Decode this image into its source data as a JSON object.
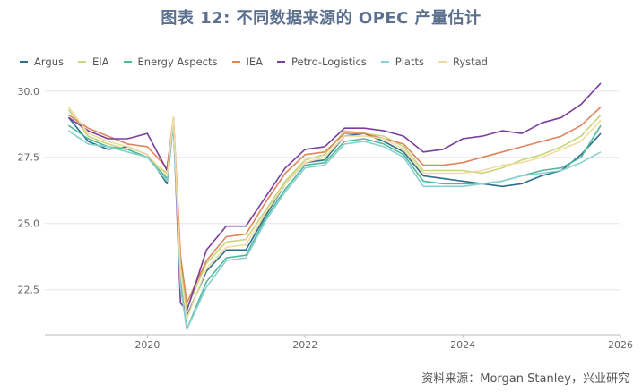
{
  "title": "图表 12: 不同数据来源的 OPEC 产量估计",
  "source": "资料来源：Morgan Stanley，兴业研究",
  "chart_data": {
    "type": "line",
    "xlabel": "",
    "ylabel": "",
    "xlim": [
      2018.7,
      2026.0
    ],
    "ylim": [
      20.8,
      30.6
    ],
    "xticks": [
      2020,
      2022,
      2024,
      2026
    ],
    "yticks": [
      22.5,
      25.0,
      27.5,
      30.0
    ],
    "ytick_labels": [
      "22.5",
      "25.0",
      "27.5",
      "30.0"
    ],
    "legend_position": "top-left",
    "grid": "horizontal",
    "x": [
      2019.0,
      2019.25,
      2019.5,
      2019.75,
      2020.0,
      2020.25,
      2020.33,
      2020.42,
      2020.5,
      2020.75,
      2021.0,
      2021.25,
      2021.5,
      2021.75,
      2022.0,
      2022.25,
      2022.5,
      2022.75,
      2023.0,
      2023.25,
      2023.5,
      2023.75,
      2024.0,
      2024.25,
      2024.5,
      2024.75,
      2025.0,
      2025.25,
      2025.5,
      2025.75
    ],
    "series": [
      {
        "name": "Argus",
        "color": "#2e6f8e",
        "values": [
          29.0,
          28.1,
          27.8,
          27.9,
          27.6,
          26.5,
          28.8,
          23.5,
          21.5,
          23.2,
          24.0,
          24.0,
          25.3,
          26.5,
          27.3,
          27.4,
          28.3,
          28.4,
          28.1,
          27.7,
          26.8,
          26.7,
          26.6,
          26.5,
          26.4,
          26.5,
          26.8,
          27.0,
          27.6,
          28.4
        ]
      },
      {
        "name": "EIA",
        "color": "#c7d67a",
        "values": [
          29.3,
          28.3,
          28.0,
          27.8,
          27.5,
          26.9,
          29.0,
          23.4,
          21.8,
          23.5,
          24.3,
          24.4,
          25.5,
          26.6,
          27.4,
          27.6,
          28.5,
          28.4,
          28.3,
          27.9,
          27.0,
          27.0,
          27.0,
          26.9,
          27.1,
          27.4,
          27.6,
          27.9,
          28.3,
          29.1
        ]
      },
      {
        "name": "Energy Aspects",
        "color": "#4fb89c",
        "values": [
          28.7,
          28.2,
          27.9,
          27.8,
          27.5,
          26.7,
          29.0,
          23.0,
          21.0,
          22.8,
          23.7,
          23.8,
          25.2,
          26.3,
          27.2,
          27.3,
          28.1,
          28.2,
          28.0,
          27.6,
          26.6,
          26.5,
          26.5,
          26.5,
          26.6,
          26.8,
          27.0,
          27.1,
          27.5,
          28.7
        ]
      },
      {
        "name": "IEA",
        "color": "#e0845b",
        "values": [
          29.1,
          28.6,
          28.3,
          28.0,
          27.9,
          27.1,
          29.0,
          23.8,
          22.0,
          23.6,
          24.5,
          24.6,
          25.8,
          26.9,
          27.6,
          27.7,
          28.4,
          28.4,
          28.2,
          28.0,
          27.2,
          27.2,
          27.3,
          27.5,
          27.7,
          27.9,
          28.1,
          28.3,
          28.7,
          29.4
        ]
      },
      {
        "name": "Petro-Logistics",
        "color": "#7a3e9d",
        "values": [
          29.0,
          28.5,
          28.2,
          28.2,
          28.4,
          27.0,
          28.8,
          22.0,
          21.7,
          24.0,
          24.9,
          24.9,
          26.0,
          27.1,
          27.8,
          27.9,
          28.6,
          28.6,
          28.5,
          28.3,
          27.7,
          27.8,
          28.2,
          28.3,
          28.5,
          28.4,
          28.8,
          29.0,
          29.5,
          30.3
        ]
      },
      {
        "name": "Platts",
        "color": "#8ad0d0",
        "values": [
          28.5,
          28.0,
          27.9,
          27.7,
          27.5,
          26.6,
          28.8,
          22.6,
          21.0,
          22.6,
          23.6,
          23.7,
          25.1,
          26.2,
          27.1,
          27.2,
          28.0,
          28.1,
          27.9,
          27.5,
          26.4,
          26.4,
          26.4,
          26.5,
          26.6,
          26.8,
          26.9,
          27.0,
          27.3,
          27.7
        ]
      },
      {
        "name": "Rystad",
        "color": "#f0dba0",
        "values": [
          29.4,
          28.4,
          28.1,
          27.9,
          27.6,
          26.8,
          29.0,
          23.2,
          21.4,
          23.3,
          24.1,
          24.2,
          25.4,
          26.5,
          27.3,
          27.5,
          28.3,
          28.3,
          28.2,
          27.8,
          26.9,
          26.9,
          26.9,
          27.0,
          27.2,
          27.3,
          27.5,
          27.8,
          28.1,
          28.9
        ]
      }
    ]
  }
}
